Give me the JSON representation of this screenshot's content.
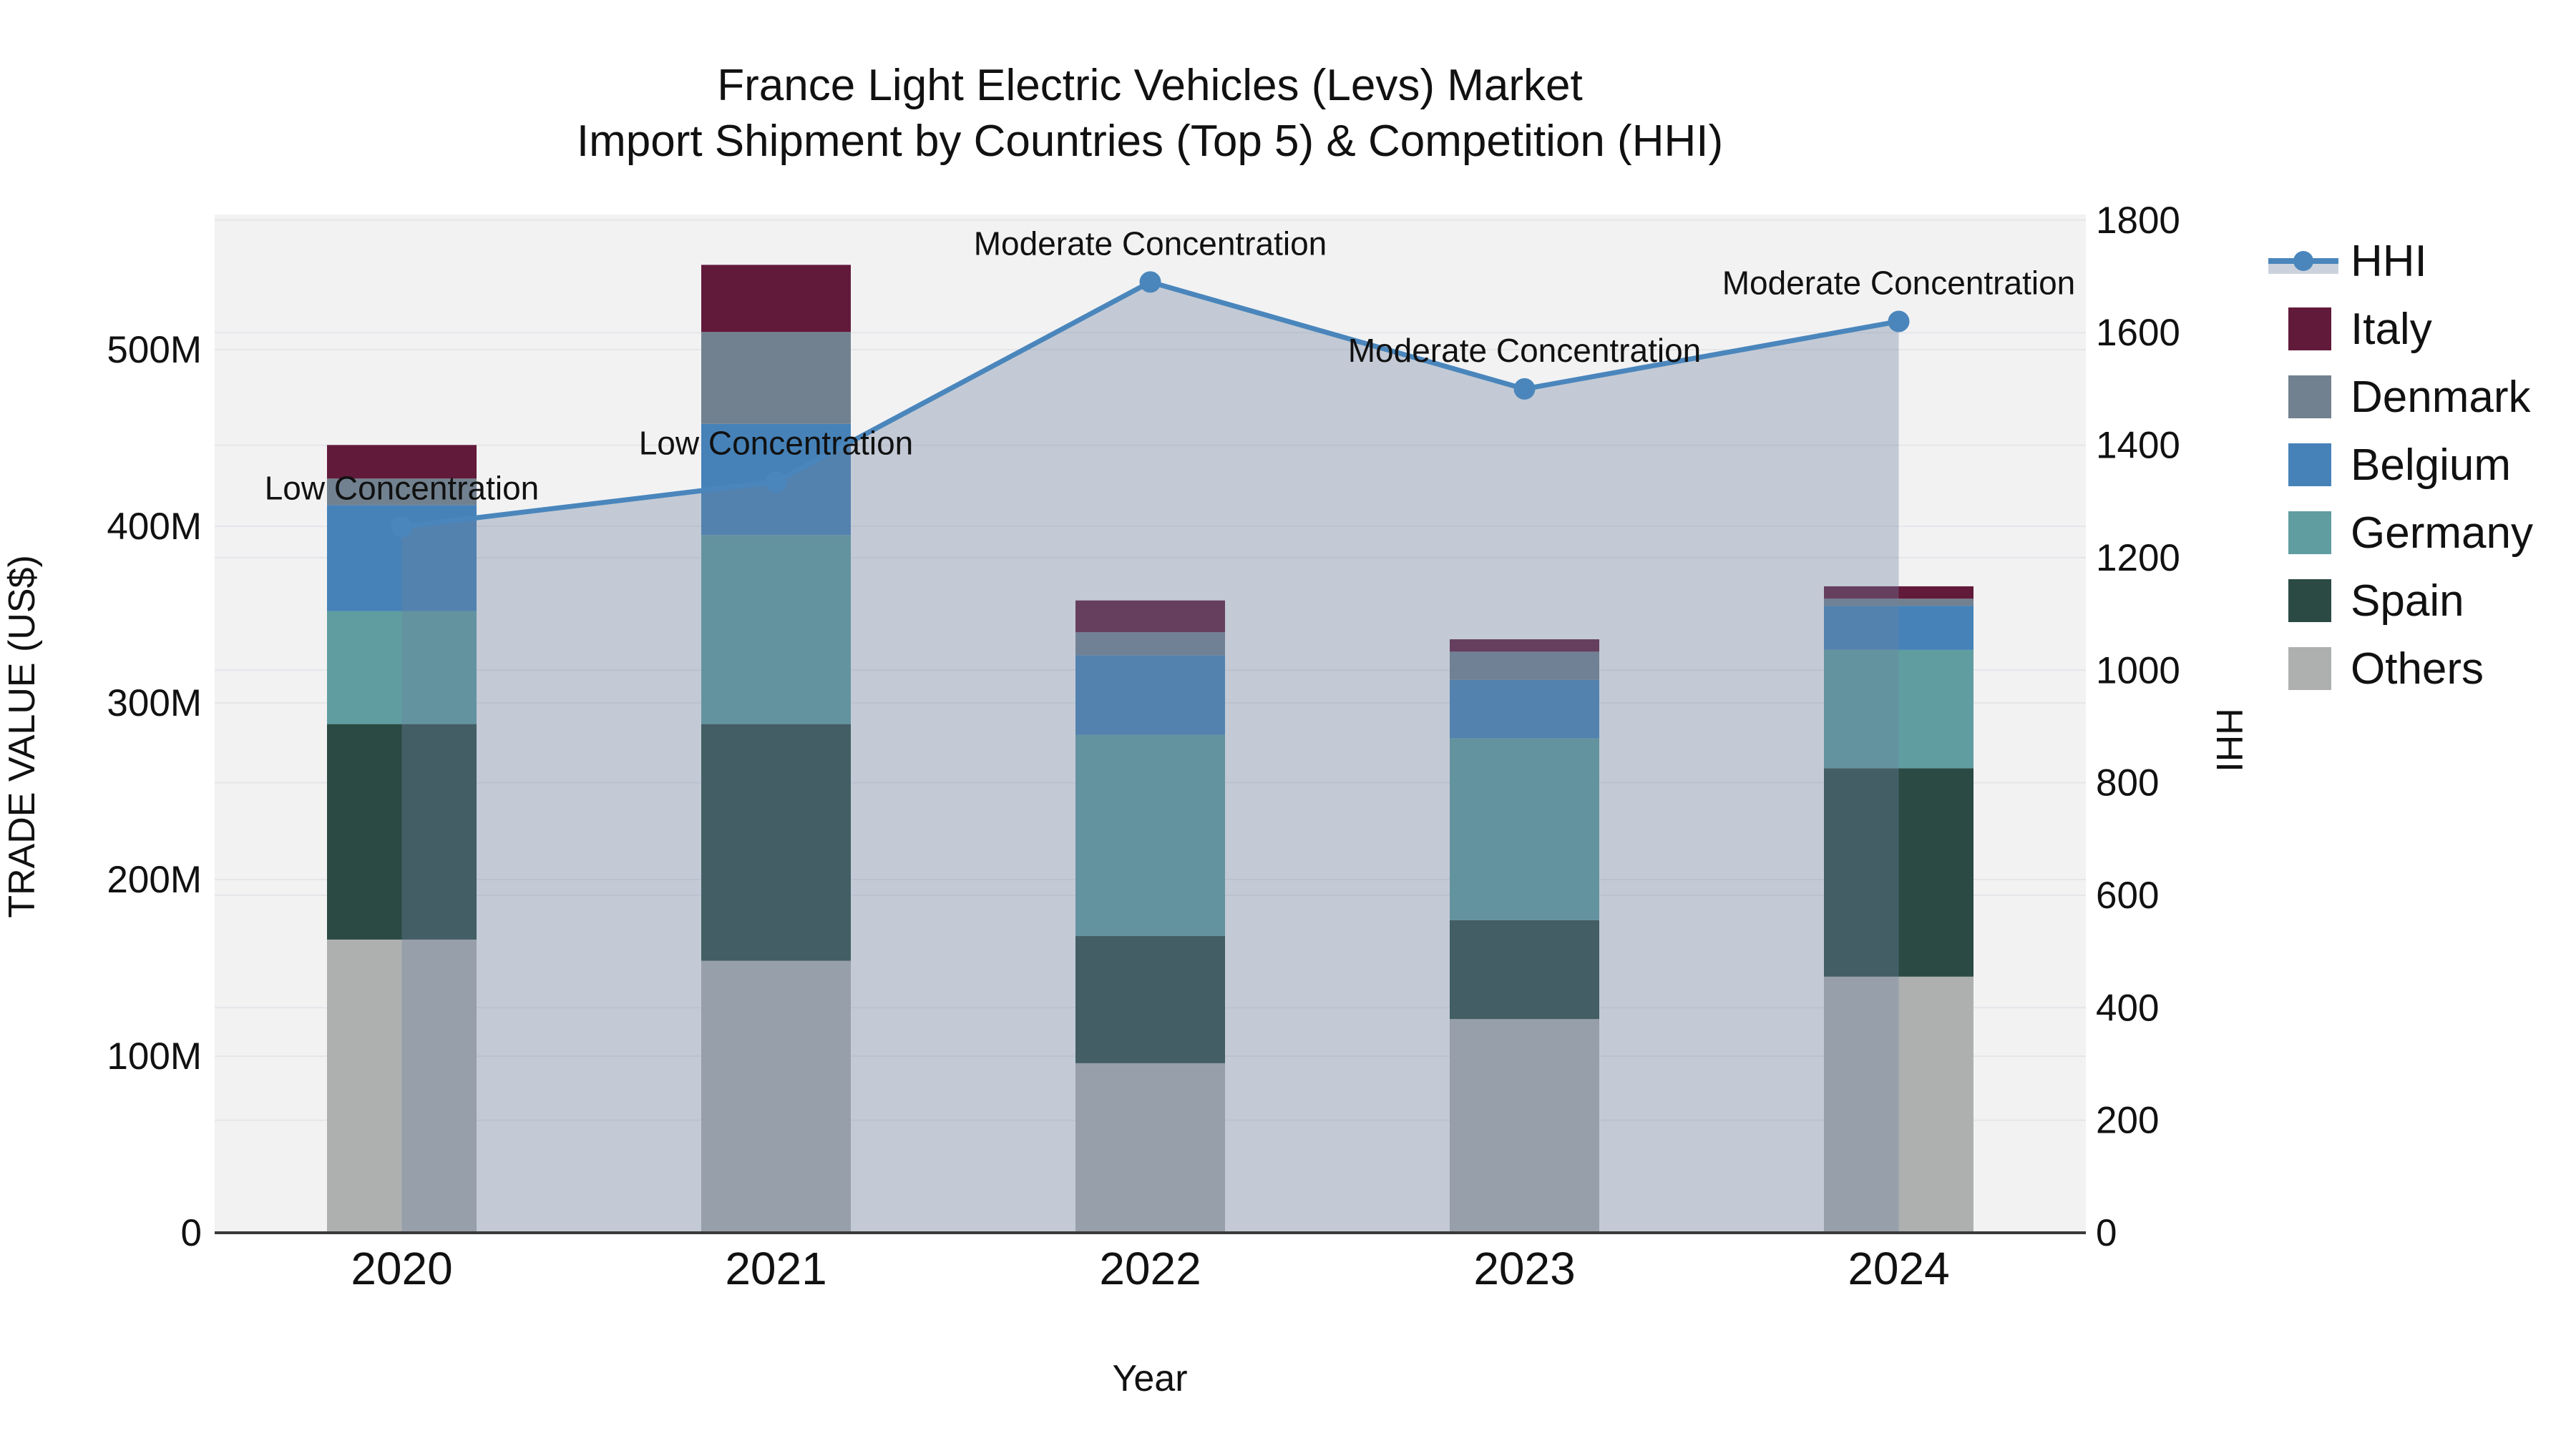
{
  "title": {
    "line1": "France Light Electric Vehicles (Levs) Market",
    "line2": "Import Shipment by Countries (Top 5) & Competition (HHI)"
  },
  "chart_data": {
    "type": "bar+line",
    "subtype": "stacked-bar-with-secondary-line",
    "categories": [
      "2020",
      "2021",
      "2022",
      "2023",
      "2024"
    ],
    "x_label": "Year",
    "series": [
      {
        "name": "Others",
        "color": "#aeb0b0",
        "values": [
          166,
          154,
          96,
          121,
          145
        ]
      },
      {
        "name": "Spain",
        "color": "#2b4a44",
        "values": [
          122,
          134,
          72,
          56,
          118
        ]
      },
      {
        "name": "Germany",
        "color": "#5f9da0",
        "values": [
          64,
          107,
          114,
          103,
          67
        ]
      },
      {
        "name": "Belgium",
        "color": "#4682b8",
        "values": [
          60,
          63,
          45,
          33,
          25
        ]
      },
      {
        "name": "Denmark",
        "color": "#72818f",
        "values": [
          15,
          52,
          13,
          16,
          4
        ]
      },
      {
        "name": "Italy",
        "color": "#621a3a",
        "values": [
          19,
          38,
          18,
          7,
          7
        ]
      }
    ],
    "line_series": {
      "name": "HHI",
      "color": "#4a86bc",
      "area_fill": "rgba(112,130,160,0.36)",
      "values": [
        1255,
        1335,
        1690,
        1500,
        1620
      ]
    },
    "annotations": [
      "Low Concentration",
      "Low Concentration",
      "Moderate Concentration",
      "Moderate Concentration",
      "Moderate Concentration"
    ],
    "left_axis": {
      "label": "TRADE VALUE (US$)",
      "tick_labels": [
        "0",
        "100M",
        "200M",
        "300M",
        "400M",
        "500M"
      ],
      "tick_values": [
        0,
        100,
        200,
        300,
        400,
        500
      ],
      "range": [
        0,
        576.5
      ]
    },
    "right_axis": {
      "label": "HHI",
      "tick_labels": [
        "0",
        "200",
        "400",
        "600",
        "800",
        "1000",
        "1200",
        "1400",
        "1600",
        "1800"
      ],
      "tick_values": [
        0,
        200,
        400,
        600,
        800,
        1000,
        1200,
        1400,
        1600,
        1800
      ],
      "range": [
        0,
        1810
      ]
    },
    "legend_order": [
      "HHI",
      "Italy",
      "Denmark",
      "Belgium",
      "Germany",
      "Spain",
      "Others"
    ],
    "grid": true,
    "legend_position": "right",
    "plot_bg": "#f2f2f3",
    "grid_color": "#e5e6e9",
    "axisline_color": "#3a3a3a"
  }
}
